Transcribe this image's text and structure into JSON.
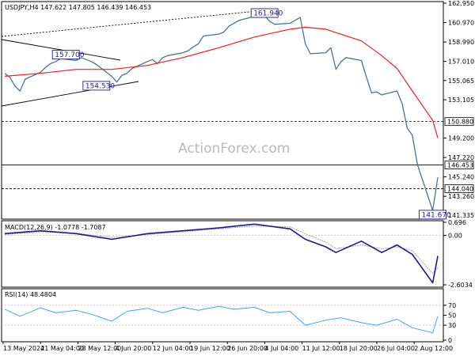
{
  "chart_data": {
    "type": "line",
    "title": "USDJPY,H4 147.622 147.805 146.439 146.453",
    "watermark": "ActionForex.com",
    "colors": {
      "price": "#4a7491",
      "ma": "#e8221b",
      "macd": "#1f1a8c",
      "signal": "#9a9a9a",
      "rsi": "#4aa3e3",
      "annotation": "#1f1a8c"
    },
    "x_labels": [
      "13 May 2024",
      "21 May 04:00",
      "28 May 12:00",
      "4 Jun 20:00",
      "12 Jun 04:00",
      "19 Jun 12:00",
      "26 Jun 20:00",
      "4 Jul 04:00",
      "11 Jul 12:00",
      "18 Jul 20:00",
      "26 Jul 04:00",
      "2 Aug 12:00"
    ],
    "price_panel": {
      "y_ticks": [
        "162.950",
        "160.970",
        "158.990",
        "157.010",
        "155.065",
        "153.105",
        "149.200",
        "147.220",
        "145.240",
        "143.260",
        "141.335"
      ],
      "level_labels": [
        "150.880",
        "146.453",
        "144.040"
      ],
      "ylim": [
        141.335,
        162.95
      ],
      "series": [
        {
          "name": "",
          "x": [
            "13 May",
            "14 May",
            "15 May",
            "16 May",
            "17 May",
            "20 May",
            "21 May",
            "22 May",
            "23 May",
            "24 May",
            "27 May",
            "28 May",
            "29 May",
            "30 May",
            "31 May",
            "3 Jun",
            "4 Jun",
            "5 Jun",
            "6 Jun",
            "7 Jun",
            "10 Jun",
            "11 Jun",
            "12 Jun",
            "13 Jun",
            "14 Jun",
            "17 Jun",
            "18 Jun",
            "19 Jun",
            "20 Jun",
            "21 Jun",
            "24 Jun",
            "25 Jun",
            "26 Jun",
            "27 Jun",
            "28 Jun",
            "1 Jul",
            "2 Jul",
            "3 Jul",
            "4 Jul",
            "5 Jul",
            "8 Jul",
            "9 Jul",
            "10 Jul",
            "11 Jul",
            "12 Jul",
            "15 Jul",
            "16 Jul",
            "17 Jul",
            "18 Jul",
            "19 Jul",
            "22 Jul",
            "23 Jul",
            "24 Jul",
            "25 Jul",
            "26 Jul",
            "29 Jul",
            "30 Jul",
            "31 Jul",
            "1 Aug",
            "2 Aug",
            "5 Aug",
            "6 Aug"
          ],
          "values": [
            155.8,
            155.4,
            154.5,
            154.0,
            155.2,
            155.9,
            156.4,
            156.8,
            157.0,
            157.3,
            157.1,
            157.4,
            157.2,
            157.0,
            156.7,
            155.5,
            154.9,
            155.6,
            155.8,
            156.3,
            157.0,
            157.2,
            156.8,
            157.4,
            157.6,
            157.9,
            158.1,
            158.5,
            158.8,
            159.6,
            159.8,
            160.0,
            160.6,
            160.9,
            161.2,
            161.6,
            161.9,
            161.7,
            161.1,
            160.8,
            160.9,
            161.2,
            161.5,
            158.8,
            157.8,
            157.9,
            158.4,
            156.2,
            157.0,
            157.4,
            157.1,
            155.4,
            153.8,
            153.9,
            153.6,
            154.0,
            152.7,
            150.2,
            149.5,
            146.5,
            141.8,
            145.2
          ]
        },
        {
          "name": "",
          "x": [
            "13 May",
            "20 May",
            "27 May",
            "3 Jun",
            "10 Jun",
            "17 Jun",
            "24 Jun",
            "1 Jul",
            "8 Jul",
            "11 Jul",
            "15 Jul",
            "22 Jul",
            "26 Jul",
            "29 Jul",
            "1 Aug",
            "5 Aug",
            "6 Aug"
          ],
          "values": [
            155.5,
            155.8,
            156.2,
            156.2,
            156.6,
            157.4,
            158.4,
            159.5,
            160.3,
            160.5,
            160.3,
            159.1,
            157.6,
            156.3,
            154.0,
            151.0,
            149.2
          ]
        }
      ],
      "annotations": [
        "161.940",
        "157.700",
        "154.530",
        "141.670"
      ]
    },
    "macd_panel": {
      "label": "MACD(12,26,9) -1.0778 -1.7087",
      "y_ticks": [
        "0.696",
        "0.00",
        "-2.6034"
      ],
      "ylim": [
        -2.6034,
        0.696
      ],
      "series": [
        {
          "name": "",
          "x": [
            "13 May",
            "20 May",
            "27 May",
            "3 Jun",
            "10 Jun",
            "17 Jun",
            "24 Jun",
            "1 Jul",
            "8 Jul",
            "11 Jul",
            "15 Jul",
            "17 Jul",
            "22 Jul",
            "26 Jul",
            "29 Jul",
            "1 Aug",
            "5 Aug",
            "6 Aug"
          ],
          "values": [
            0.1,
            0.25,
            0.1,
            -0.2,
            0.1,
            0.25,
            0.4,
            0.6,
            0.35,
            -0.2,
            -0.6,
            -0.9,
            -0.3,
            -0.9,
            -0.5,
            -1.0,
            -2.5,
            -1.08
          ]
        },
        {
          "name": "",
          "x": [
            "13 May",
            "20 May",
            "27 May",
            "3 Jun",
            "10 Jun",
            "17 Jun",
            "24 Jun",
            "1 Jul",
            "8 Jul",
            "11 Jul",
            "15 Jul",
            "17 Jul",
            "22 Jul",
            "26 Jul",
            "29 Jul",
            "1 Aug",
            "5 Aug",
            "6 Aug"
          ],
          "values": [
            0.05,
            0.2,
            0.12,
            -0.1,
            0.05,
            0.2,
            0.35,
            0.5,
            0.45,
            0.1,
            -0.35,
            -0.7,
            -0.5,
            -0.7,
            -0.6,
            -0.8,
            -2.0,
            -1.71
          ]
        }
      ]
    },
    "rsi_panel": {
      "label": "RSI(14) 48.4804",
      "y_ticks": [
        "70",
        "50",
        "30",
        "0"
      ],
      "ylim": [
        0,
        100
      ],
      "series": [
        {
          "name": "",
          "x": [
            "13 May",
            "16 May",
            "20 May",
            "23 May",
            "27 May",
            "30 May",
            "3 Jun",
            "6 Jun",
            "10 Jun",
            "13 Jun",
            "17 Jun",
            "20 Jun",
            "24 Jun",
            "27 Jun",
            "1 Jul",
            "4 Jul",
            "8 Jul",
            "11 Jul",
            "15 Jul",
            "18 Jul",
            "22 Jul",
            "25 Jul",
            "29 Jul",
            "1 Aug",
            "5 Aug",
            "6 Aug"
          ],
          "values": [
            62,
            48,
            65,
            55,
            60,
            52,
            38,
            58,
            64,
            55,
            66,
            60,
            68,
            62,
            66,
            55,
            58,
            30,
            40,
            45,
            35,
            30,
            42,
            25,
            15,
            48
          ]
        }
      ]
    }
  }
}
